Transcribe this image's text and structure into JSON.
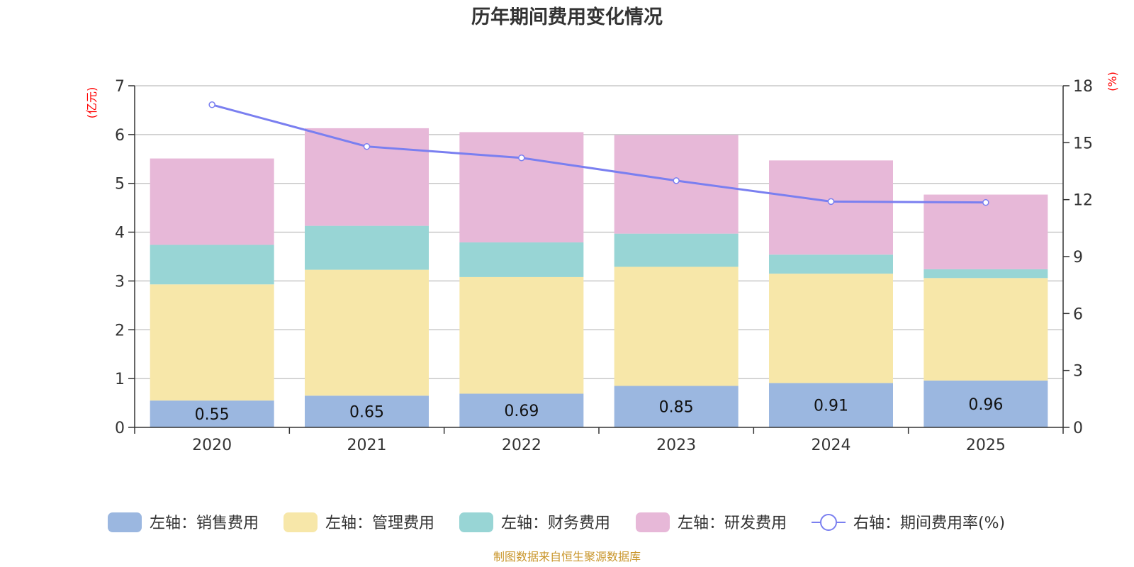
{
  "chart_data": {
    "type": "bar",
    "title": "历年期间费用变化情况",
    "categories": [
      "2020",
      "2021",
      "2022",
      "2023",
      "2024",
      "2025"
    ],
    "left_axis": {
      "unit": "(亿元)",
      "ylim": [
        0,
        7
      ],
      "ticks": [
        "0",
        "1",
        "2",
        "3",
        "4",
        "5",
        "6",
        "7"
      ]
    },
    "right_axis": {
      "unit": "(%)",
      "ylim": [
        0,
        18
      ],
      "ticks": [
        "0",
        "3",
        "6",
        "9",
        "12",
        "15",
        "18"
      ]
    },
    "stacked": true,
    "grid": true,
    "legend_position": "bottom",
    "series": [
      {
        "name": "左轴：销售费用",
        "axis": "left",
        "type": "bar",
        "color": "#9bb7e0",
        "values": [
          0.55,
          0.65,
          0.69,
          0.85,
          0.91,
          0.96
        ],
        "labels": [
          "0.55",
          "0.65",
          "0.69",
          "0.85",
          "0.91",
          "0.96"
        ]
      },
      {
        "name": "左轴：管理费用",
        "axis": "left",
        "type": "bar",
        "color": "#f7e7a9",
        "values": [
          2.38,
          2.58,
          2.39,
          2.44,
          2.24,
          2.1
        ]
      },
      {
        "name": "左轴：财务费用",
        "axis": "left",
        "type": "bar",
        "color": "#98d5d5",
        "values": [
          0.81,
          0.9,
          0.71,
          0.68,
          0.39,
          0.18
        ]
      },
      {
        "name": "左轴：研发费用",
        "axis": "left",
        "type": "bar",
        "color": "#e7b8d8",
        "values": [
          1.77,
          2.0,
          2.26,
          2.02,
          1.93,
          1.53
        ]
      },
      {
        "name": "右轴：期间费用率(%)",
        "axis": "right",
        "type": "line",
        "color": "#7a7ff0",
        "values": [
          17.0,
          14.8,
          14.2,
          13.0,
          11.9,
          11.85
        ]
      }
    ],
    "source": "制图数据来自恒生聚源数据库"
  }
}
